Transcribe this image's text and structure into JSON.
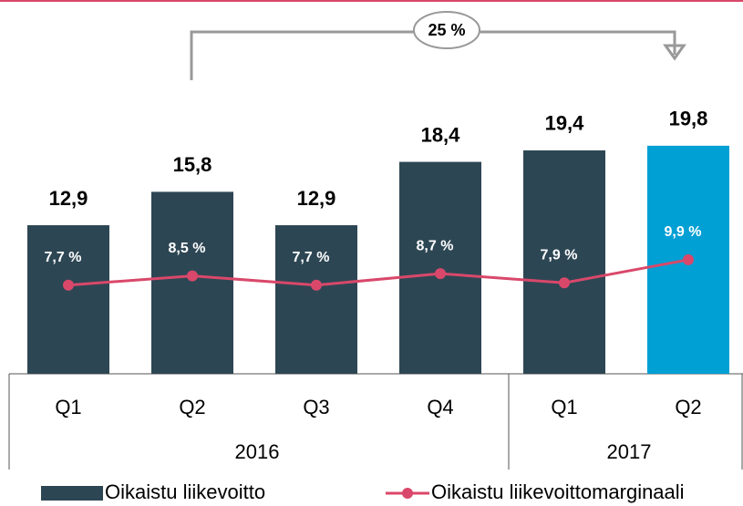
{
  "chart_data": {
    "type": "bar",
    "categories": [
      "Q1",
      "Q2",
      "Q3",
      "Q4",
      "Q1",
      "Q2"
    ],
    "groups": [
      {
        "label": "2016",
        "span": 4
      },
      {
        "label": "2017",
        "span": 2
      }
    ],
    "series": [
      {
        "name": "Oikaistu liikevoitto",
        "type": "bar",
        "color": "#2d4654",
        "colors": [
          "#2d4654",
          "#2d4654",
          "#2d4654",
          "#2d4654",
          "#2d4654",
          "#009fd4"
        ],
        "values": [
          12.9,
          15.8,
          12.9,
          18.4,
          19.4,
          19.8
        ],
        "value_labels": [
          "12,9",
          "15,8",
          "12,9",
          "18,4",
          "19,4",
          "19,8"
        ]
      },
      {
        "name": "Oikaistu liikevoittomarginaali",
        "type": "line",
        "color": "#d9486a",
        "values": [
          7.7,
          8.5,
          7.7,
          8.7,
          7.9,
          9.9
        ],
        "value_labels": [
          "7,7 %",
          "8,5 %",
          "7,7 %",
          "8,7 %",
          "7,9 %",
          "9,9 %"
        ]
      }
    ],
    "annotation": "25 %",
    "ylim": [
      0,
      30
    ]
  }
}
